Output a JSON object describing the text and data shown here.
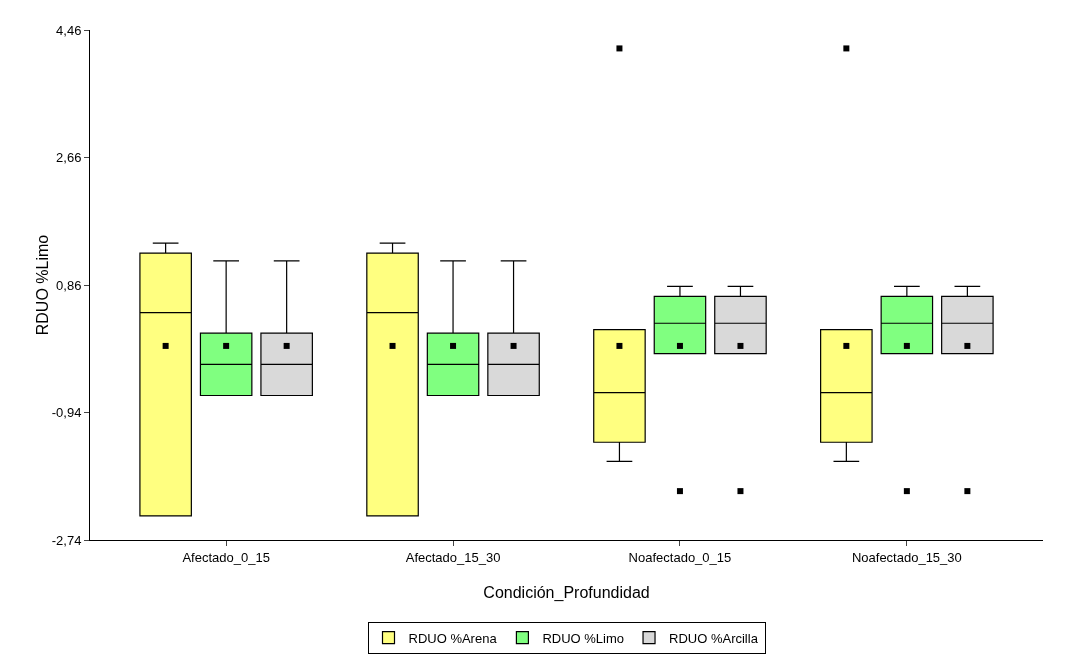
{
  "chart_data": {
    "type": "box",
    "xlabel": "Condición_Profundidad",
    "ylabel": "RDUO %Limo",
    "categories": [
      "Afectado_0_15",
      "Afectado_15_30",
      "Noafectado_0_15",
      "Noafectado_15_30"
    ],
    "ylim": [
      -2.74,
      4.46
    ],
    "yticks": [
      {
        "value": -2.74,
        "label": "-2,74"
      },
      {
        "value": -0.94,
        "label": "-0,94"
      },
      {
        "value": 0.86,
        "label": "0,86"
      },
      {
        "value": 2.66,
        "label": "2,66"
      },
      {
        "value": 4.46,
        "label": "4,46"
      }
    ],
    "grid": false,
    "legend": "bottom",
    "marker": "square",
    "series": [
      {
        "name": "RDUO %Arena",
        "color": "#ffff80",
        "boxes": [
          {
            "low": -2.4,
            "q1": -2.4,
            "median": 0.47,
            "q3": 1.31,
            "high": 1.45,
            "mean": 0
          },
          {
            "low": -2.4,
            "q1": -2.4,
            "median": 0.47,
            "q3": 1.31,
            "high": 1.45,
            "mean": 0
          },
          {
            "low": -1.63,
            "q1": -1.36,
            "median": -0.66,
            "q3": 0.23,
            "high": 0.23,
            "mean": 0,
            "outliers": [
              4.2
            ]
          },
          {
            "low": -1.63,
            "q1": -1.36,
            "median": -0.66,
            "q3": 0.23,
            "high": 0.23,
            "mean": 0,
            "outliers": [
              4.2
            ]
          }
        ]
      },
      {
        "name": "RDUO %Limo",
        "color": "#80ff80",
        "boxes": [
          {
            "low": -0.7,
            "q1": -0.7,
            "median": -0.26,
            "q3": 0.18,
            "high": 1.2,
            "mean": 0
          },
          {
            "low": -0.7,
            "q1": -0.7,
            "median": -0.26,
            "q3": 0.18,
            "high": 1.2,
            "mean": 0
          },
          {
            "low": -0.11,
            "q1": -0.11,
            "median": 0.32,
            "q3": 0.7,
            "high": 0.84,
            "mean": 0,
            "outliers": [
              -2.05
            ]
          },
          {
            "low": -0.11,
            "q1": -0.11,
            "median": 0.32,
            "q3": 0.7,
            "high": 0.84,
            "mean": 0,
            "outliers": [
              -2.05
            ]
          }
        ]
      },
      {
        "name": "RDUO %Arcilla",
        "color": "#d9d9d9",
        "boxes": [
          {
            "low": -0.7,
            "q1": -0.7,
            "median": -0.26,
            "q3": 0.18,
            "high": 1.2,
            "mean": 0
          },
          {
            "low": -0.7,
            "q1": -0.7,
            "median": -0.26,
            "q3": 0.18,
            "high": 1.2,
            "mean": 0
          },
          {
            "low": -0.11,
            "q1": -0.11,
            "median": 0.32,
            "q3": 0.7,
            "high": 0.84,
            "mean": 0,
            "outliers": [
              -2.05
            ]
          },
          {
            "low": -0.11,
            "q1": -0.11,
            "median": 0.32,
            "q3": 0.7,
            "high": 0.84,
            "mean": 0,
            "outliers": [
              -2.05
            ]
          }
        ]
      }
    ]
  }
}
